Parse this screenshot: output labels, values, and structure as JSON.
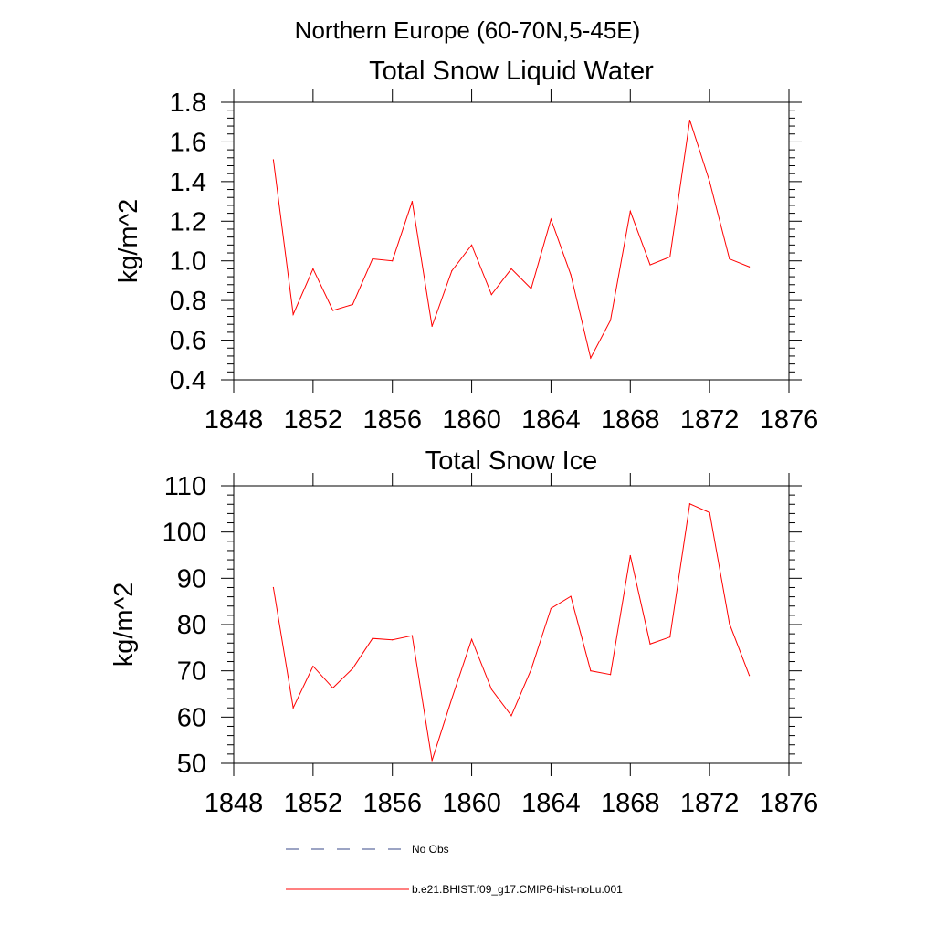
{
  "figure_title": "Northern Europe (60-70N,5-45E)",
  "legend": {
    "entries": [
      {
        "label": "No Obs",
        "style": "dashed",
        "color": "#3a4a8a"
      },
      {
        "label": "b.e21.BHIST.f09_g17.CMIP6-hist-noLu.001",
        "style": "solid",
        "color": "#ff0000"
      }
    ]
  },
  "chart_data": [
    {
      "type": "line",
      "title": "Total Snow Liquid Water",
      "xlabel": "",
      "ylabel": "kg/m^2",
      "xlim": [
        1848,
        1876
      ],
      "ylim": [
        0.4,
        1.8
      ],
      "xticks": [
        1848,
        1852,
        1856,
        1860,
        1864,
        1868,
        1872,
        1876
      ],
      "xtick_labels": [
        "1848",
        "1852",
        "1856",
        "1860",
        "1864",
        "1868",
        "1872",
        "1876"
      ],
      "yticks": [
        0.4,
        0.6,
        0.8,
        1.0,
        1.2,
        1.4,
        1.6,
        1.8
      ],
      "ytick_labels": [
        "0.4",
        "0.6",
        "0.8",
        "1.0",
        "1.2",
        "1.4",
        "1.6",
        "1.8"
      ],
      "grid": false,
      "series": [
        {
          "color": "#ff0000",
          "x": [
            1850,
            1851,
            1852,
            1853,
            1854,
            1855,
            1856,
            1857,
            1858,
            1859,
            1860,
            1861,
            1862,
            1863,
            1864,
            1865,
            1866,
            1867,
            1868,
            1869,
            1870,
            1871,
            1872,
            1873,
            1874
          ],
          "y": [
            1.51,
            0.73,
            0.96,
            0.75,
            0.78,
            1.01,
            1.0,
            1.3,
            0.67,
            0.95,
            1.08,
            0.83,
            0.96,
            0.86,
            1.21,
            0.93,
            0.51,
            0.7,
            1.25,
            0.98,
            1.02,
            1.71,
            1.4,
            1.01,
            0.97
          ]
        }
      ]
    },
    {
      "type": "line",
      "title": "Total Snow Ice",
      "xlabel": "",
      "ylabel": "kg/m^2",
      "xlim": [
        1848,
        1876
      ],
      "ylim": [
        50,
        110
      ],
      "xticks": [
        1848,
        1852,
        1856,
        1860,
        1864,
        1868,
        1872,
        1876
      ],
      "xtick_labels": [
        "1848",
        "1852",
        "1856",
        "1860",
        "1864",
        "1868",
        "1872",
        "1876"
      ],
      "yticks": [
        50,
        60,
        70,
        80,
        90,
        100,
        110
      ],
      "ytick_labels": [
        "50",
        "60",
        "70",
        "80",
        "90",
        "100",
        "110"
      ],
      "grid": false,
      "series": [
        {
          "color": "#ff0000",
          "x": [
            1850,
            1851,
            1852,
            1853,
            1854,
            1855,
            1856,
            1857,
            1858,
            1859,
            1860,
            1861,
            1862,
            1863,
            1864,
            1865,
            1866,
            1867,
            1868,
            1869,
            1870,
            1871,
            1872,
            1873,
            1874
          ],
          "y": [
            88.0,
            62.0,
            71.0,
            66.3,
            70.5,
            77.0,
            76.7,
            77.6,
            50.6,
            64.0,
            76.8,
            66.0,
            60.3,
            70.3,
            83.5,
            86.1,
            70.0,
            69.2,
            94.9,
            75.8,
            77.3,
            106.1,
            104.2,
            80.2,
            69.0
          ]
        }
      ]
    }
  ]
}
